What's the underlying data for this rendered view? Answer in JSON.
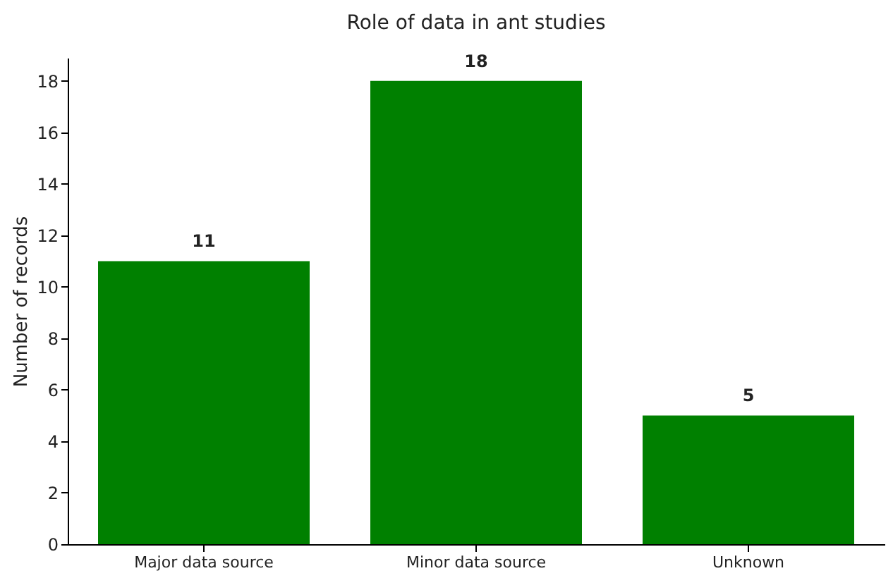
{
  "chart_data": {
    "type": "bar",
    "title": "Role of data in ant studies",
    "ylabel": "Number of records",
    "categories": [
      "Major data source",
      "Minor data source",
      "Unknown"
    ],
    "values": [
      11,
      18,
      5
    ],
    "color": "#008000",
    "ylim": [
      0,
      18.9
    ],
    "yticks": [
      0,
      2,
      4,
      6,
      8,
      10,
      12,
      14,
      16,
      18
    ],
    "grid": false,
    "data_labels": true
  }
}
